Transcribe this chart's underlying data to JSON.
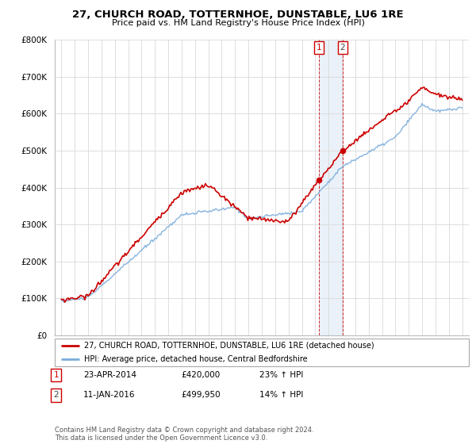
{
  "title_line1": "27, CHURCH ROAD, TOTTERNHOE, DUNSTABLE, LU6 1RE",
  "title_line2": "Price paid vs. HM Land Registry's House Price Index (HPI)",
  "background_color": "#ffffff",
  "grid_color": "#dddddd",
  "sale1_date": "23-APR-2014",
  "sale1_price": 420000,
  "sale1_hpi": "23% ↑ HPI",
  "sale2_date": "11-JAN-2016",
  "sale2_price": 499950,
  "sale2_hpi": "14% ↑ HPI",
  "sale1_year": 2014.29,
  "sale2_year": 2016.04,
  "legend_property": "27, CHURCH ROAD, TOTTERNHOE, DUNSTABLE, LU6 1RE (detached house)",
  "legend_hpi": "HPI: Average price, detached house, Central Bedfordshire",
  "footer": "Contains HM Land Registry data © Crown copyright and database right 2024.\nThis data is licensed under the Open Government Licence v3.0.",
  "property_color": "#cc0000",
  "hpi_color": "#7aacdc",
  "ylim": [
    0,
    800000
  ],
  "yticks": [
    0,
    100000,
    200000,
    300000,
    400000,
    500000,
    600000,
    700000,
    800000
  ],
  "ytick_labels": [
    "£0",
    "£100K",
    "£200K",
    "£300K",
    "£400K",
    "£500K",
    "£600K",
    "£700K",
    "£800K"
  ],
  "xlim_min": 1994.5,
  "xlim_max": 2025.5
}
